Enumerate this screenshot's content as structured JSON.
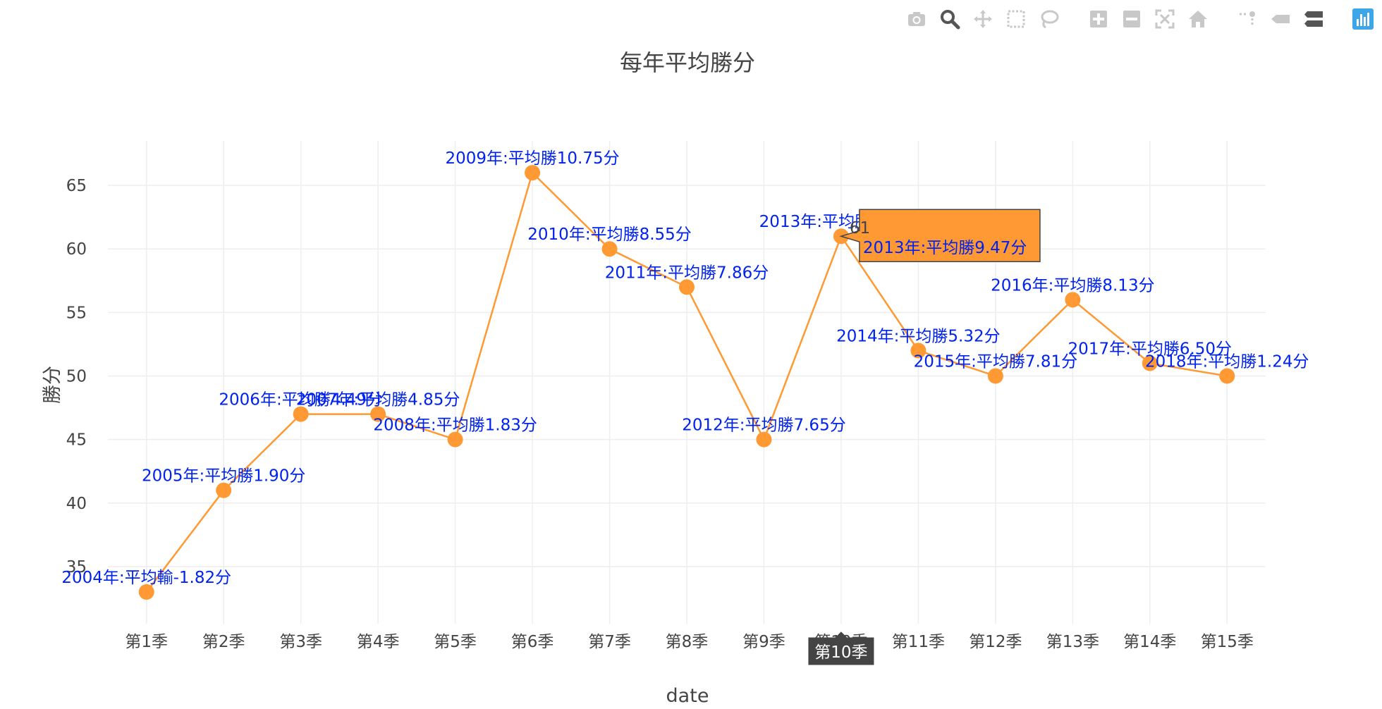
{
  "modebar": {
    "buttons": [
      "camera-icon",
      "zoom-icon",
      "pan-icon",
      "box-select-icon",
      "lasso-icon",
      "zoom-in-icon",
      "zoom-out-icon",
      "autoscale-icon",
      "reset-axes-icon",
      "spike-lines-icon",
      "hover-closest-icon",
      "hover-compare-icon",
      "plotly-logo-icon"
    ]
  },
  "colors": {
    "line": "#ff9933",
    "label": "#0022ee",
    "grid": "#eeeeee",
    "text": "#444444"
  },
  "chart_data": {
    "type": "line",
    "title": "每年平均勝分",
    "xlabel": "date",
    "ylabel": "勝分",
    "ylim": [
      30.5,
      68.5
    ],
    "yticks": [
      35,
      40,
      45,
      50,
      55,
      60,
      65
    ],
    "grid": true,
    "categories": [
      "第1季",
      "第2季",
      "第3季",
      "第4季",
      "第5季",
      "第6季",
      "第7季",
      "第8季",
      "第9季",
      "第10季",
      "第11季",
      "第12季",
      "第13季",
      "第14季",
      "第15季"
    ],
    "values": [
      33,
      41,
      47,
      47,
      45,
      66,
      60,
      57,
      45,
      61,
      52,
      50,
      56,
      51,
      50
    ],
    "labels": [
      "2004年:平均輸-1.82分",
      "2005年:平均勝1.90分",
      "2006年:平均勝4.49分",
      "2007年:平均勝4.85分",
      "2008年:平均勝1.83分",
      "2009年:平均勝10.75分",
      "2010年:平均勝8.55分",
      "2011年:平均勝7.86分",
      "2012年:平均勝7.65分",
      "2013年:平均勝9.47分",
      "2014年:平均勝5.32分",
      "2015年:平均勝7.81分",
      "2016年:平均勝8.13分",
      "2017年:平均勝6.50分",
      "2018年:平均勝1.24分"
    ],
    "hover": {
      "index": 9,
      "value_text": "61",
      "text": "2013年:平均勝9.47分",
      "x_label": "第10季"
    }
  }
}
